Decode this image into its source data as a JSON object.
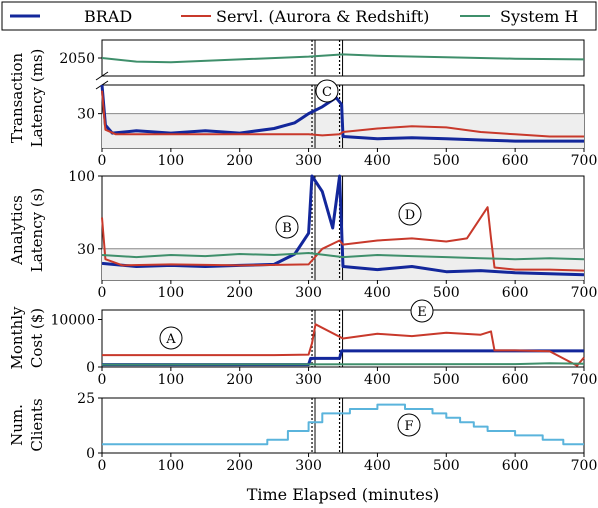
{
  "legend": [
    {
      "name": "BRAD",
      "color": "#13279b"
    },
    {
      "name": "Servl. (Aurora & Redshift)",
      "color": "#c8392b"
    },
    {
      "name": "System H",
      "color": "#3f8f6b"
    }
  ],
  "xlabel": "Time Elapsed (minutes)",
  "markers": [
    "A",
    "B",
    "C",
    "D",
    "E",
    "F"
  ],
  "event_lines": [
    305,
    345
  ],
  "chart_data": [
    {
      "type": "line",
      "id": "transaction-latency",
      "ylabel_lines": [
        "Transaction",
        "Latency (ms)"
      ],
      "xlim": [
        0,
        700
      ],
      "xticks": [
        0,
        100,
        200,
        300,
        400,
        500,
        600,
        700
      ],
      "broken_axis": true,
      "upper_panel": {
        "ylim": [
          1800,
          2300
        ],
        "yticks": [
          2050
        ]
      },
      "lower_panel": {
        "ylim": [
          0,
          55
        ],
        "yticks": [
          30
        ],
        "slo_band": [
          0,
          30
        ]
      },
      "series": [
        {
          "name": "BRAD",
          "x": [
            0,
            5,
            15,
            50,
            100,
            150,
            200,
            250,
            280,
            290,
            300,
            320,
            340,
            348,
            350,
            400,
            450,
            500,
            550,
            600,
            650,
            700
          ],
          "y": [
            55,
            20,
            13,
            15,
            13,
            15,
            13,
            17,
            22,
            26,
            30,
            36,
            44,
            38,
            10,
            8,
            9,
            8,
            7,
            6,
            6,
            6
          ]
        },
        {
          "name": "Servl. (Aurora & Redshift)",
          "x": [
            0,
            5,
            20,
            100,
            200,
            300,
            320,
            345,
            350,
            400,
            450,
            500,
            550,
            600,
            650,
            700
          ],
          "y": [
            50,
            16,
            12,
            12,
            12,
            12,
            11,
            12,
            14,
            17,
            19,
            18,
            14,
            12,
            10,
            10
          ]
        },
        {
          "name": "System H",
          "x": [
            0,
            50,
            100,
            200,
            300,
            350,
            400,
            500,
            600,
            700
          ],
          "y": [
            2050,
            2000,
            1990,
            2030,
            2070,
            2100,
            2080,
            2060,
            2040,
            2030
          ]
        }
      ]
    },
    {
      "type": "line",
      "id": "analytics-latency",
      "ylabel_lines": [
        "Analytics",
        "Latency (s)"
      ],
      "xlim": [
        0,
        700
      ],
      "ylim": [
        0,
        100
      ],
      "xticks": [
        0,
        100,
        200,
        300,
        400,
        500,
        600,
        700
      ],
      "yticks": [
        30,
        100
      ],
      "slo_band": [
        0,
        30
      ],
      "series": [
        {
          "name": "BRAD",
          "x": [
            0,
            50,
            100,
            150,
            200,
            250,
            280,
            300,
            305,
            320,
            335,
            345,
            350,
            400,
            450,
            500,
            550,
            600,
            650,
            700
          ],
          "y": [
            16,
            13,
            14,
            13,
            14,
            15,
            25,
            45,
            100,
            85,
            50,
            100,
            13,
            10,
            13,
            8,
            9,
            7,
            6,
            5
          ]
        },
        {
          "name": "Servl. (Aurora & Redshift)",
          "x": [
            0,
            5,
            30,
            100,
            200,
            300,
            320,
            345,
            350,
            400,
            450,
            500,
            530,
            560,
            565,
            570,
            600,
            650,
            700
          ],
          "y": [
            60,
            20,
            14,
            15,
            14,
            15,
            30,
            38,
            34,
            38,
            40,
            37,
            40,
            70,
            40,
            12,
            10,
            10,
            9
          ]
        },
        {
          "name": "System H",
          "x": [
            0,
            50,
            100,
            150,
            200,
            250,
            300,
            350,
            400,
            450,
            500,
            550,
            600,
            650,
            700
          ],
          "y": [
            24,
            22,
            24,
            23,
            25,
            24,
            26,
            22,
            24,
            23,
            22,
            21,
            20,
            21,
            20
          ]
        }
      ]
    },
    {
      "type": "line",
      "id": "monthly-cost",
      "ylabel_lines": [
        "Monthly",
        "Cost ($)"
      ],
      "xlim": [
        0,
        700
      ],
      "ylim": [
        0,
        12000
      ],
      "xticks": [
        0,
        100,
        200,
        300,
        400,
        500,
        600,
        700
      ],
      "yticks": [
        0,
        10000
      ],
      "series": [
        {
          "name": "BRAD",
          "x": [
            0,
            300,
            303,
            345,
            348,
            570,
            575,
            700
          ],
          "y": [
            500,
            500,
            1800,
            1800,
            3400,
            3400,
            3400,
            3400
          ]
        },
        {
          "name": "Servl. (Aurora & Redshift)",
          "x": [
            0,
            250,
            300,
            305,
            310,
            350,
            400,
            450,
            500,
            550,
            565,
            570,
            600,
            650,
            690,
            700
          ],
          "y": [
            2500,
            2500,
            2600,
            5000,
            9000,
            6000,
            7000,
            6500,
            7200,
            6800,
            7500,
            3500,
            3500,
            3300,
            300,
            2000
          ]
        },
        {
          "name": "System H",
          "x": [
            0,
            600,
            650,
            700
          ],
          "y": [
            500,
            600,
            800,
            700
          ]
        }
      ]
    },
    {
      "type": "line",
      "id": "num-clients",
      "ylabel_lines": [
        "Num.",
        "Clients"
      ],
      "xlim": [
        0,
        700
      ],
      "ylim": [
        0,
        25
      ],
      "xticks": [
        0,
        100,
        200,
        300,
        400,
        500,
        600,
        700
      ],
      "yticks": [
        0,
        25
      ],
      "series": [
        {
          "name": "Clients",
          "x": [
            0,
            240,
            240,
            270,
            270,
            300,
            300,
            320,
            320,
            360,
            360,
            400,
            400,
            440,
            440,
            480,
            480,
            500,
            500,
            520,
            520,
            540,
            540,
            560,
            560,
            600,
            600,
            640,
            640,
            670,
            670,
            700
          ],
          "y": [
            4,
            4,
            6,
            6,
            10,
            10,
            14,
            14,
            18,
            18,
            20,
            20,
            22,
            22,
            20,
            20,
            18,
            18,
            16,
            16,
            14,
            14,
            12,
            12,
            10,
            10,
            8,
            8,
            6,
            6,
            4,
            4
          ],
          "color": "#5ab4dc"
        }
      ]
    }
  ]
}
